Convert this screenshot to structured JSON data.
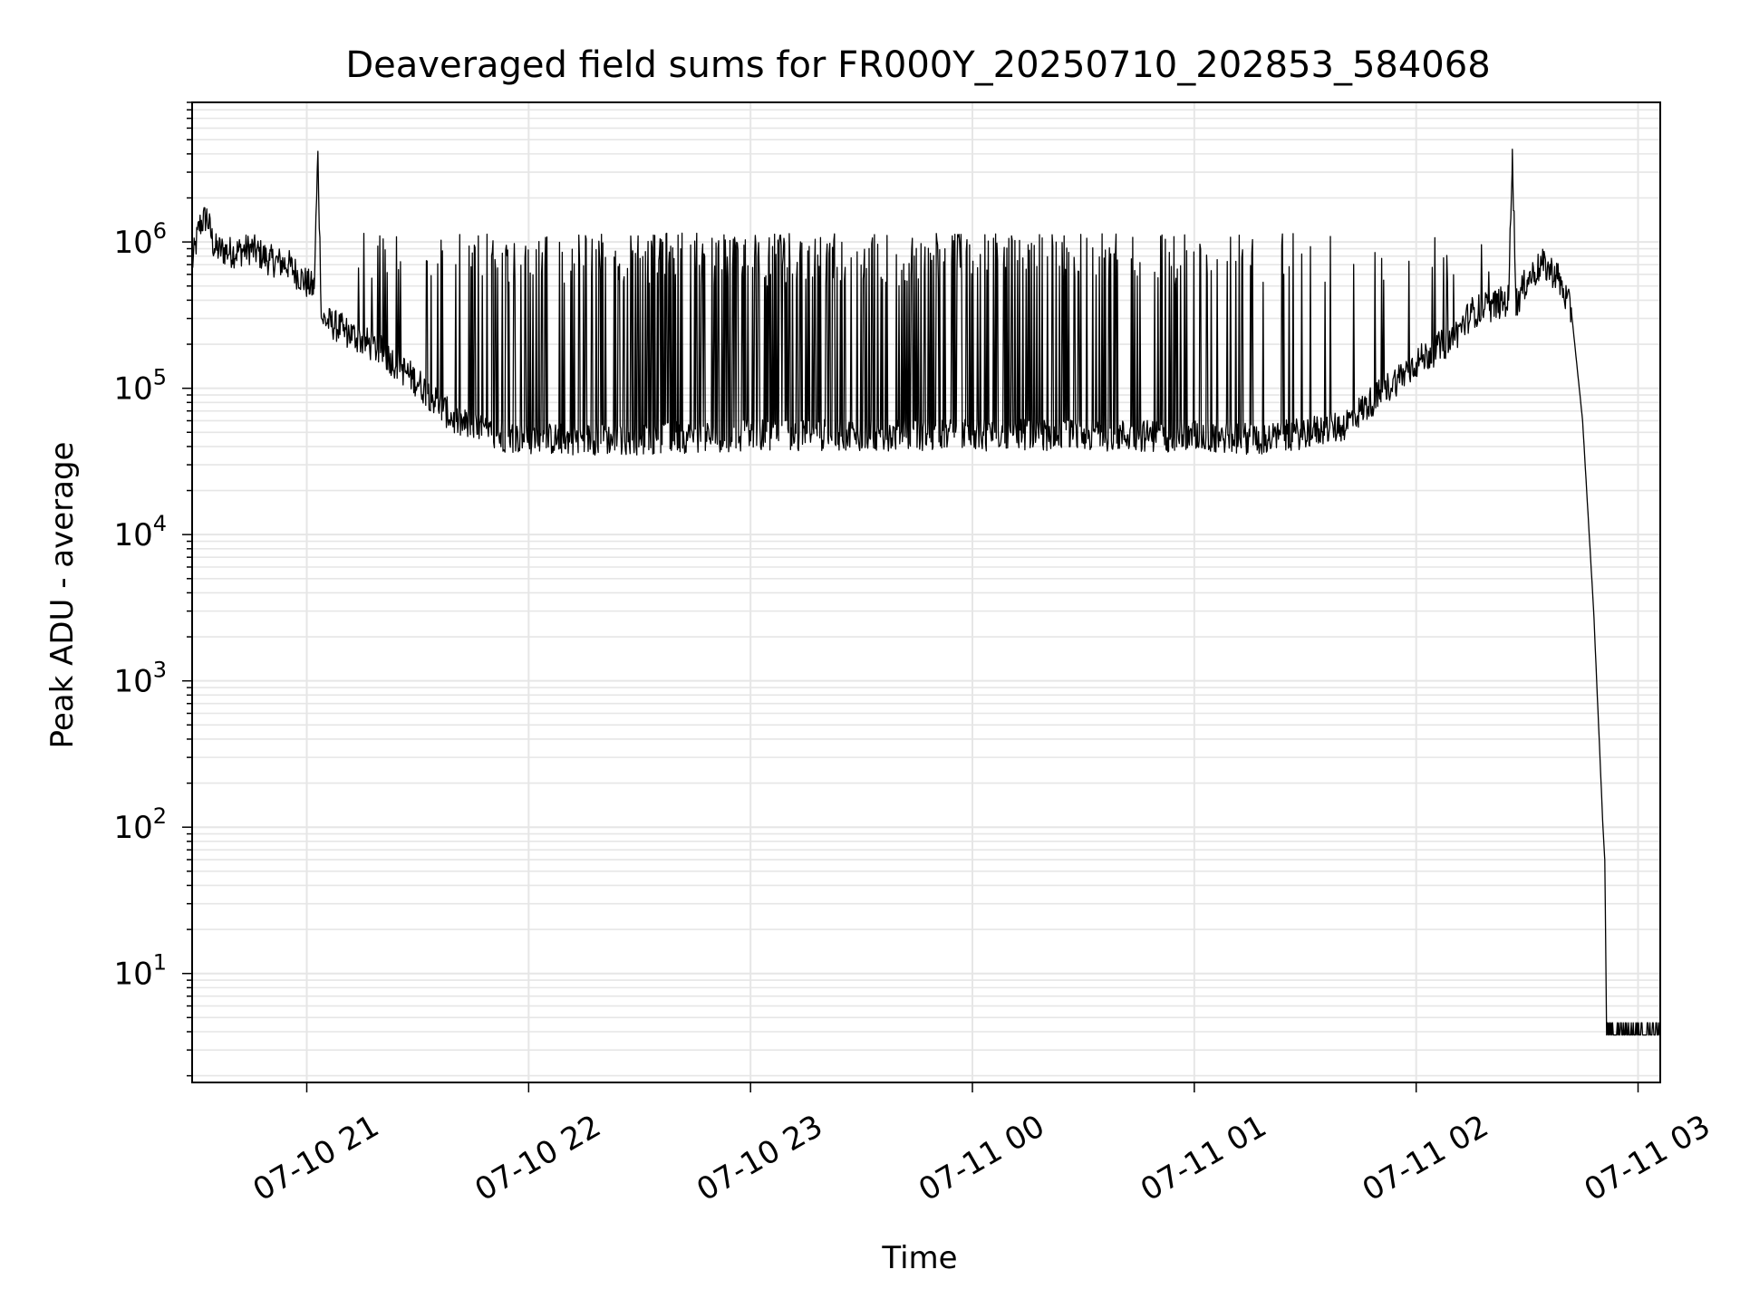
{
  "chart_data": {
    "type": "line",
    "title": "Deaveraged field sums for FR000Y_20250710_202853_584068",
    "xlabel": "Time",
    "ylabel": "Peak ADU - average",
    "yscale": "log",
    "ylim": [
      1.8,
      9000000
    ],
    "xlim": [
      "07-10 20:29",
      "07-11 03:06"
    ],
    "grid": "both (major and minor)",
    "colors": {
      "line": "#000000",
      "grid": "#e6e6e6",
      "axes": "#000000"
    },
    "xticks": [
      {
        "t": "07-10 21:00",
        "label": "07-10 21"
      },
      {
        "t": "07-10 22:00",
        "label": "07-10 22"
      },
      {
        "t": "07-10 23:00",
        "label": "07-10 23"
      },
      {
        "t": "07-11 00:00",
        "label": "07-11 00"
      },
      {
        "t": "07-11 01:00",
        "label": "07-11 01"
      },
      {
        "t": "07-11 02:00",
        "label": "07-11 02"
      },
      {
        "t": "07-11 03:00",
        "label": "07-11 03"
      }
    ],
    "yticks": [
      {
        "v": 10,
        "base": "10",
        "exp": "1"
      },
      {
        "v": 100,
        "base": "10",
        "exp": "2"
      },
      {
        "v": 1000,
        "base": "10",
        "exp": "3"
      },
      {
        "v": 10000,
        "base": "10",
        "exp": "4"
      },
      {
        "v": 100000,
        "base": "10",
        "exp": "5"
      },
      {
        "v": 1000000,
        "base": "10",
        "exp": "6"
      }
    ],
    "series": [
      {
        "points": [
          [
            "07-10 20:29",
            700000
          ],
          [
            "07-10 20:31",
            1300000
          ],
          [
            "07-10 20:33",
            1500000
          ],
          [
            "07-10 20:35",
            900000
          ],
          [
            "07-10 20:40",
            850000
          ],
          [
            "07-10 20:45",
            900000
          ],
          [
            "07-10 20:50",
            750000
          ],
          [
            "07-10 20:55",
            700000
          ],
          [
            "07-10 21:00",
            520000
          ],
          [
            "07-10 21:02",
            480000
          ],
          [
            "07-10 21:03",
            4000000
          ],
          [
            "07-10 21:04",
            300000
          ],
          [
            "07-10 21:10",
            250000
          ],
          [
            "07-10 21:20",
            180000
          ],
          [
            "07-10 21:30",
            110000
          ],
          [
            "07-10 21:40",
            60000
          ],
          [
            "07-10 21:50",
            48000
          ],
          [
            "07-10 22:00",
            45000
          ],
          [
            "07-10 22:30",
            45000
          ],
          [
            "07-10 23:00",
            48000
          ],
          [
            "07-10 23:30",
            48000
          ],
          [
            "07-11 00:00",
            48000
          ],
          [
            "07-11 00:30",
            48000
          ],
          [
            "07-11 01:00",
            47000
          ],
          [
            "07-11 01:20",
            45000
          ],
          [
            "07-11 01:40",
            55000
          ],
          [
            "07-11 01:50",
            90000
          ],
          [
            "07-11 02:00",
            150000
          ],
          [
            "07-11 02:10",
            220000
          ],
          [
            "07-11 02:15",
            330000
          ],
          [
            "07-11 02:25",
            400000
          ],
          [
            "07-11 02:26",
            4300000
          ],
          [
            "07-11 02:27",
            380000
          ],
          [
            "07-11 02:30",
            550000
          ],
          [
            "07-11 02:34",
            700000
          ],
          [
            "07-11 02:38",
            600000
          ],
          [
            "07-11 02:42",
            330000
          ],
          [
            "07-11 02:45",
            60000
          ],
          [
            "07-11 02:48",
            3000
          ],
          [
            "07-11 02:50",
            200
          ],
          [
            "07-11 02:50:30",
            100
          ],
          [
            "07-11 02:51",
            60
          ],
          [
            "07-11 02:51:30",
            3.8
          ],
          [
            "07-11 03:06",
            3.8
          ]
        ]
      }
    ]
  }
}
